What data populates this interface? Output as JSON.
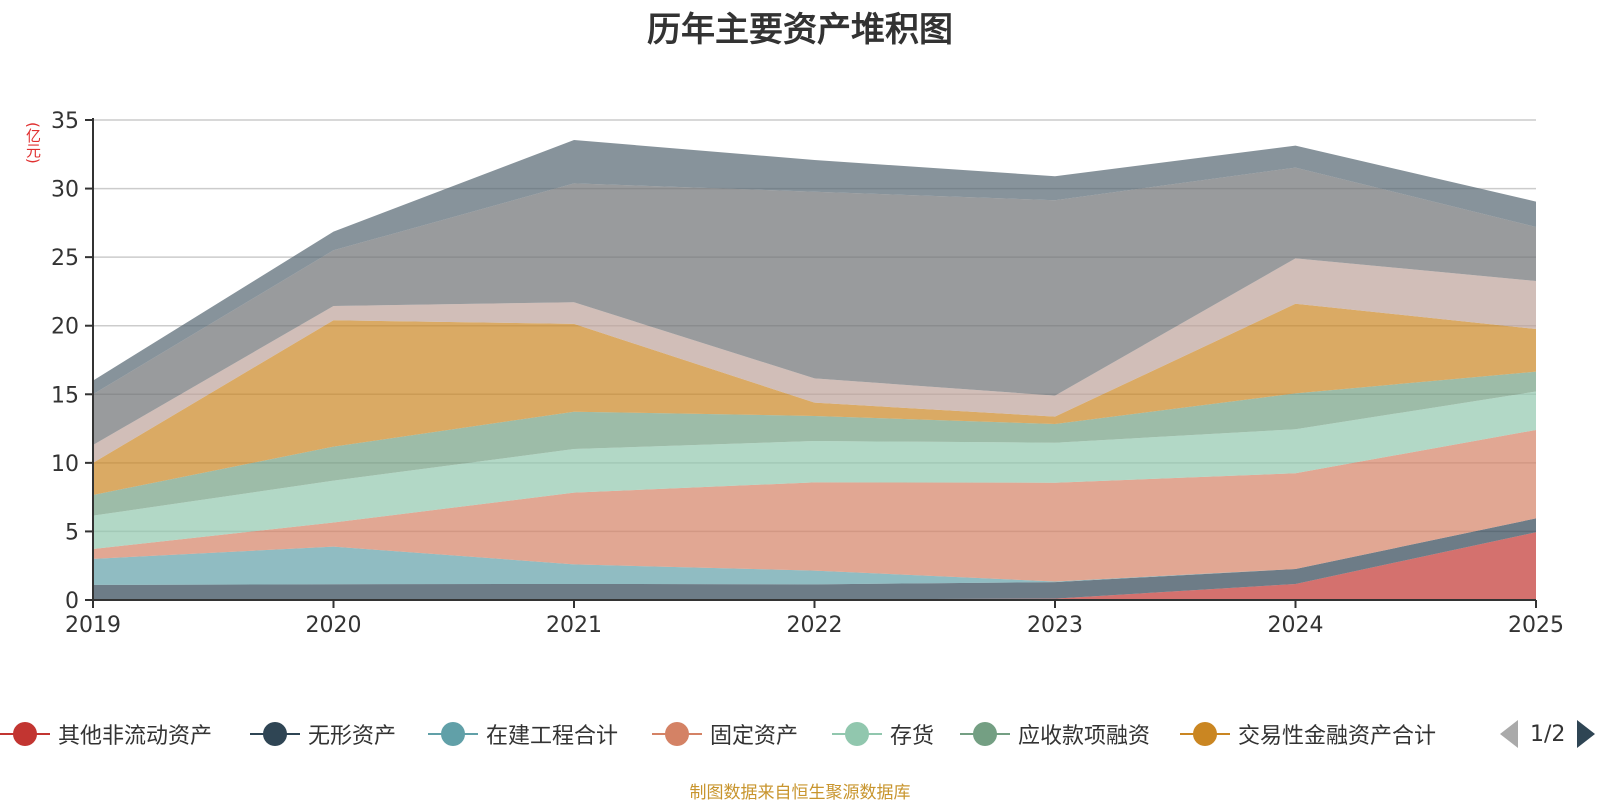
{
  "chart_data": {
    "type": "area",
    "stacked": true,
    "title": "历年主要资产堆积图",
    "ylabel": "(亿元)",
    "xlabel": "",
    "categories": [
      "2019",
      "2020",
      "2021",
      "2022",
      "2023",
      "2024",
      "2025"
    ],
    "ylim": [
      0,
      35
    ],
    "yticks": [
      0,
      5,
      10,
      15,
      20,
      25,
      30,
      35
    ],
    "grid": true,
    "legend_position": "bottom",
    "series": [
      {
        "name": "其他非流动资产",
        "color": "#c23531",
        "values": [
          0,
          0,
          0,
          0.05,
          0.1,
          1.17,
          4.94
        ]
      },
      {
        "name": "无形资产",
        "color": "#2f4554",
        "values": [
          1.1,
          1.15,
          1.17,
          1.09,
          1.2,
          1.09,
          1.01
        ]
      },
      {
        "name": "在建工程合计",
        "color": "#61a0a8",
        "values": [
          1.9,
          2.74,
          1.43,
          1.0,
          0.05,
          0,
          0
        ]
      },
      {
        "name": "固定资产",
        "color": "#d48265",
        "values": [
          0.72,
          1.76,
          5.23,
          6.44,
          7.2,
          6.98,
          6.45
        ]
      },
      {
        "name": "存货",
        "color": "#91c7ae",
        "values": [
          2.43,
          3.05,
          3.18,
          3.01,
          2.92,
          3.21,
          2.8
        ]
      },
      {
        "name": "应收款项融资",
        "color": "#749f83",
        "values": [
          1.51,
          2.48,
          2.72,
          1.83,
          1.36,
          2.62,
          1.45
        ]
      },
      {
        "name": "交易性金融资产合计",
        "color": "#ca8622",
        "values": [
          2.34,
          9.22,
          6.4,
          0.97,
          0.54,
          6.53,
          3.11
        ]
      },
      {
        "name": "",
        "color": "#bda29a",
        "values": [
          1.3,
          1.04,
          1.58,
          1.77,
          1.53,
          3.31,
          3.5
        ]
      },
      {
        "name": "",
        "color": "#6e7074",
        "values": [
          3.7,
          4.06,
          8.67,
          13.61,
          14.25,
          6.62,
          3.94
        ]
      },
      {
        "name": "",
        "color": "#546570",
        "values": [
          1.0,
          1.36,
          3.16,
          2.31,
          1.75,
          1.6,
          1.85
        ]
      }
    ]
  },
  "legend": {
    "page_indicator": "1/2",
    "visible_count": 7
  },
  "source_note": "制图数据来自恒生聚源数据库"
}
